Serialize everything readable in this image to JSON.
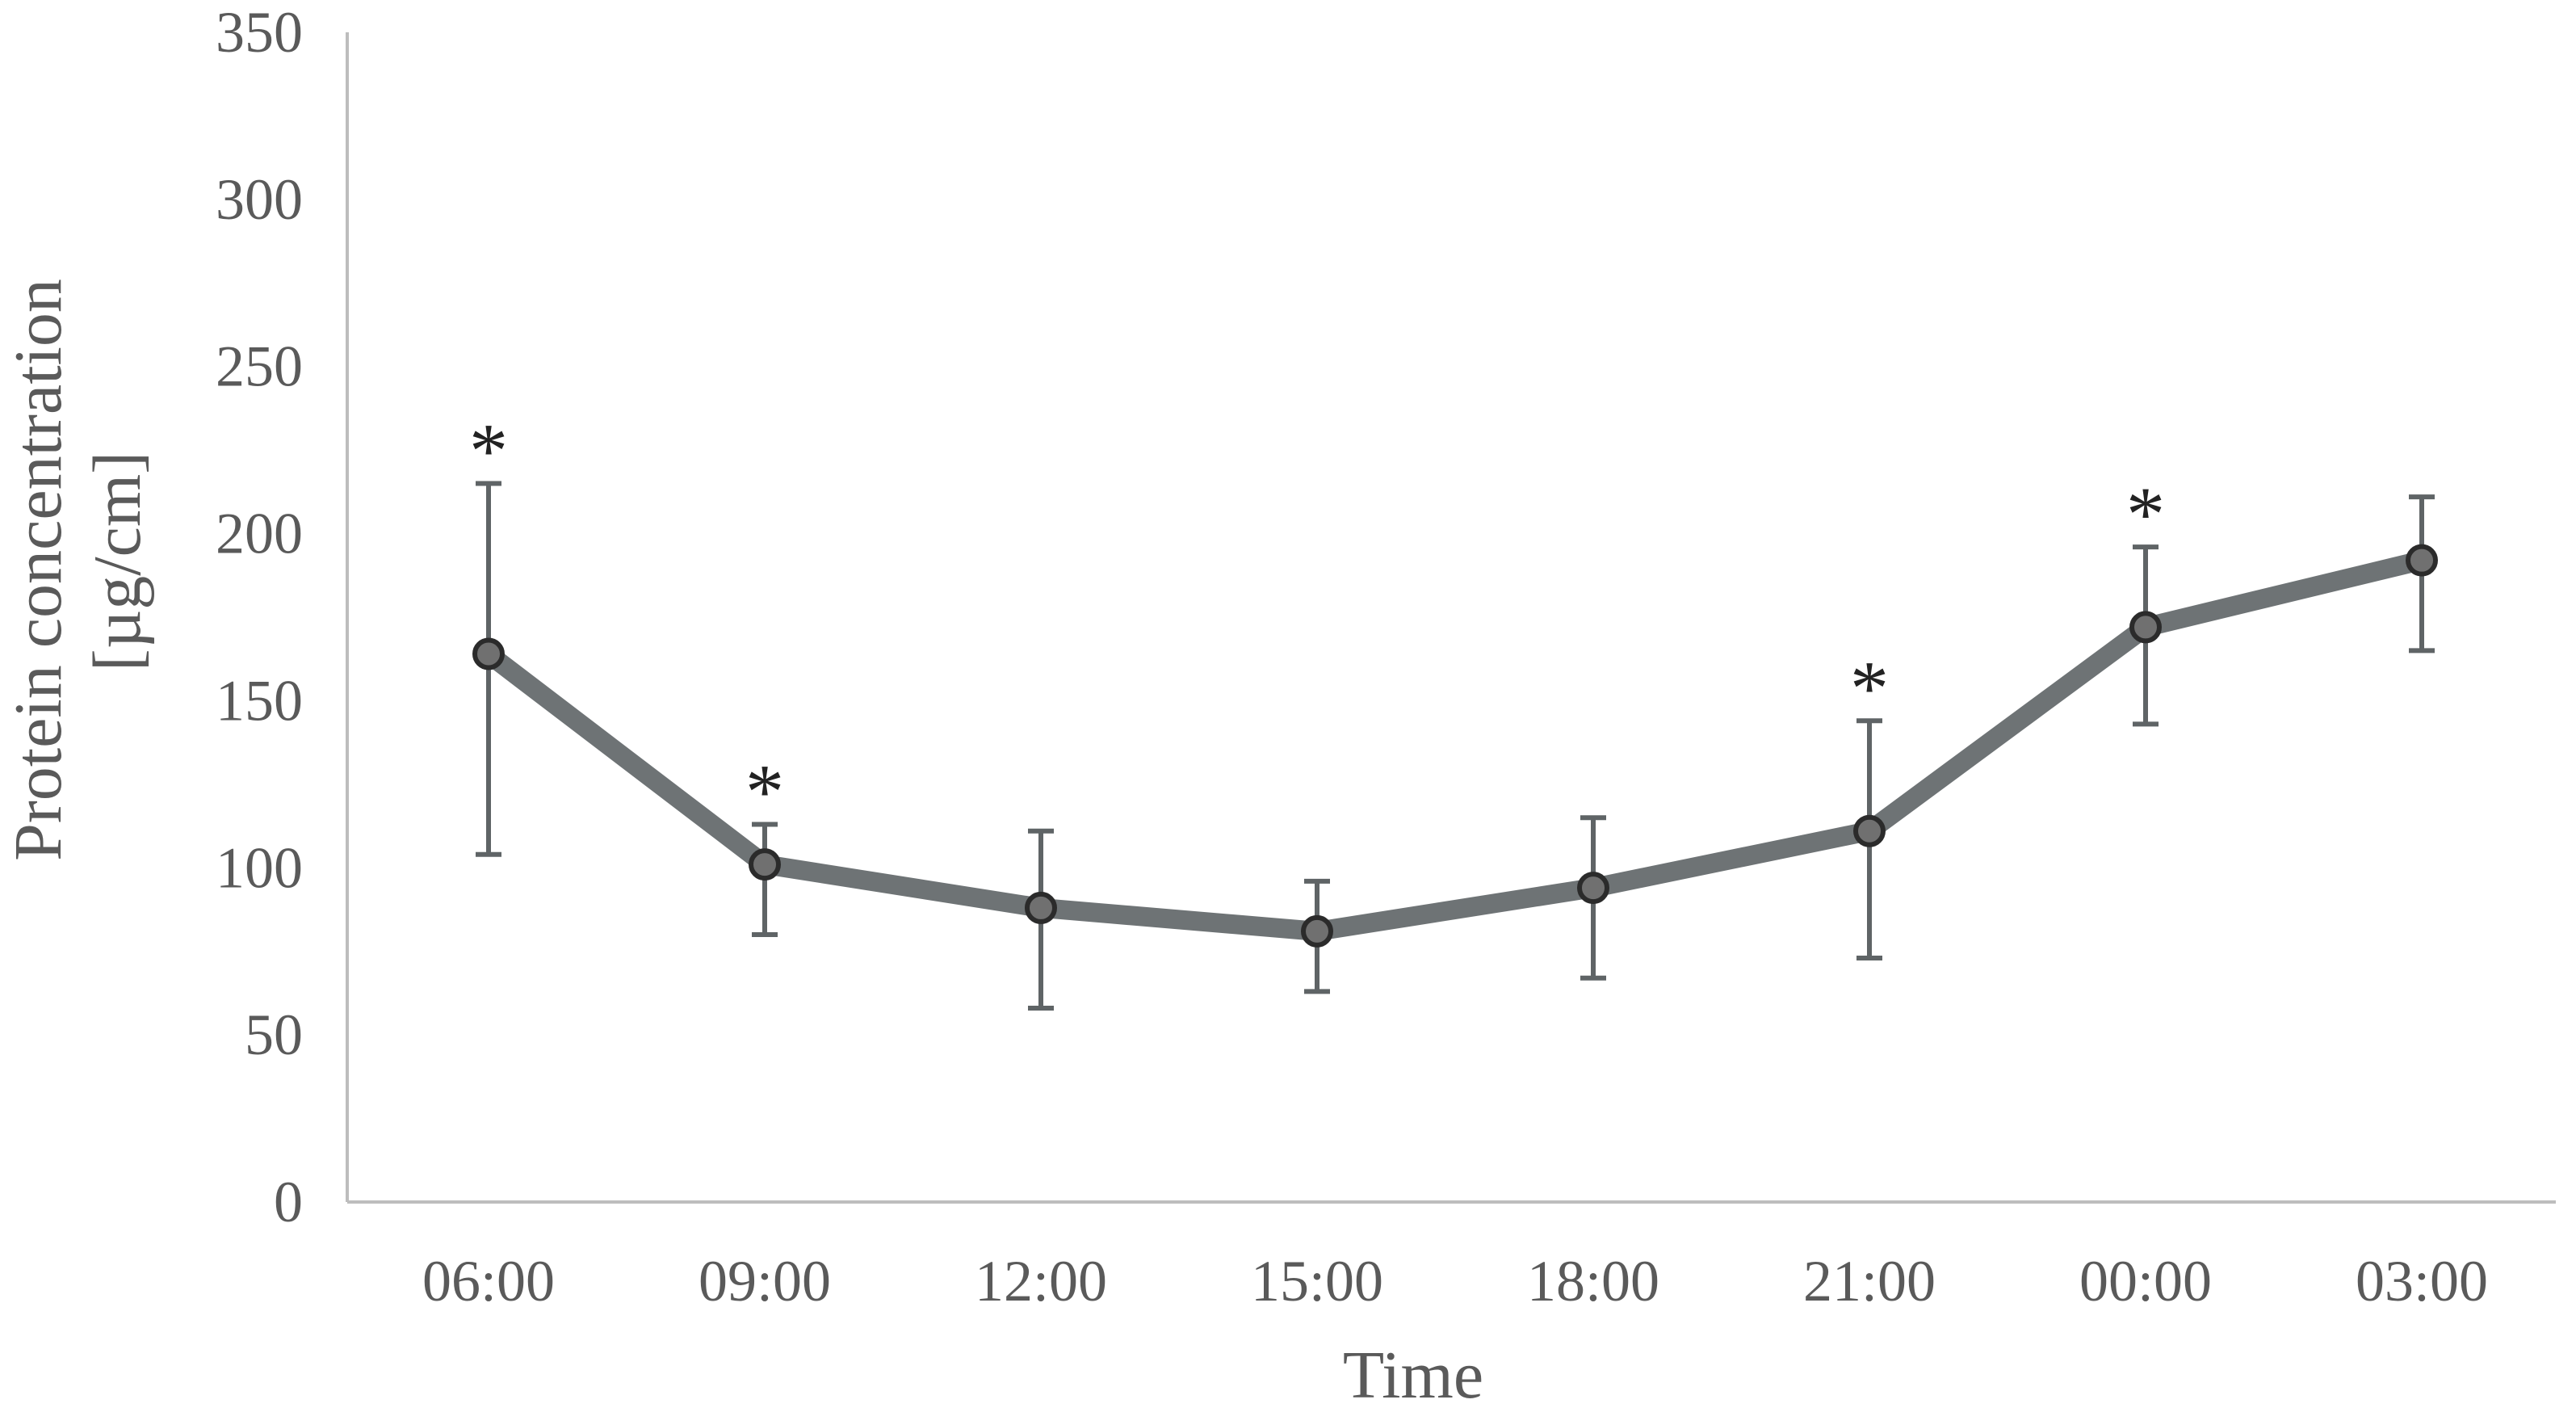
{
  "chart_data": {
    "type": "line",
    "title": "",
    "xlabel": "Time",
    "ylabel_line1": "Protein concentration",
    "ylabel_line2": "[µg/cm]",
    "categories": [
      "06:00",
      "09:00",
      "12:00",
      "15:00",
      "18:00",
      "21:00",
      "00:00",
      "03:00"
    ],
    "ylim": [
      0,
      350
    ],
    "yticks": [
      0,
      50,
      100,
      150,
      200,
      250,
      300,
      350
    ],
    "grid": false,
    "series": [
      {
        "values": [
          164,
          101,
          88,
          81,
          94,
          111,
          172,
          192
        ],
        "error_upper": [
          215,
          113,
          111,
          96,
          115,
          144,
          196,
          211
        ],
        "error_lower": [
          104,
          80,
          58,
          63,
          67,
          73,
          143,
          165
        ],
        "significance": [
          "*",
          "*",
          "",
          "",
          "",
          "*",
          "*",
          ""
        ]
      }
    ],
    "colors": {
      "line": "#6e7375",
      "marker_fill": "#707070",
      "marker_edge": "#2b2b2b",
      "error_bar": "#5f6466",
      "axis": "#bdbdbd"
    }
  }
}
